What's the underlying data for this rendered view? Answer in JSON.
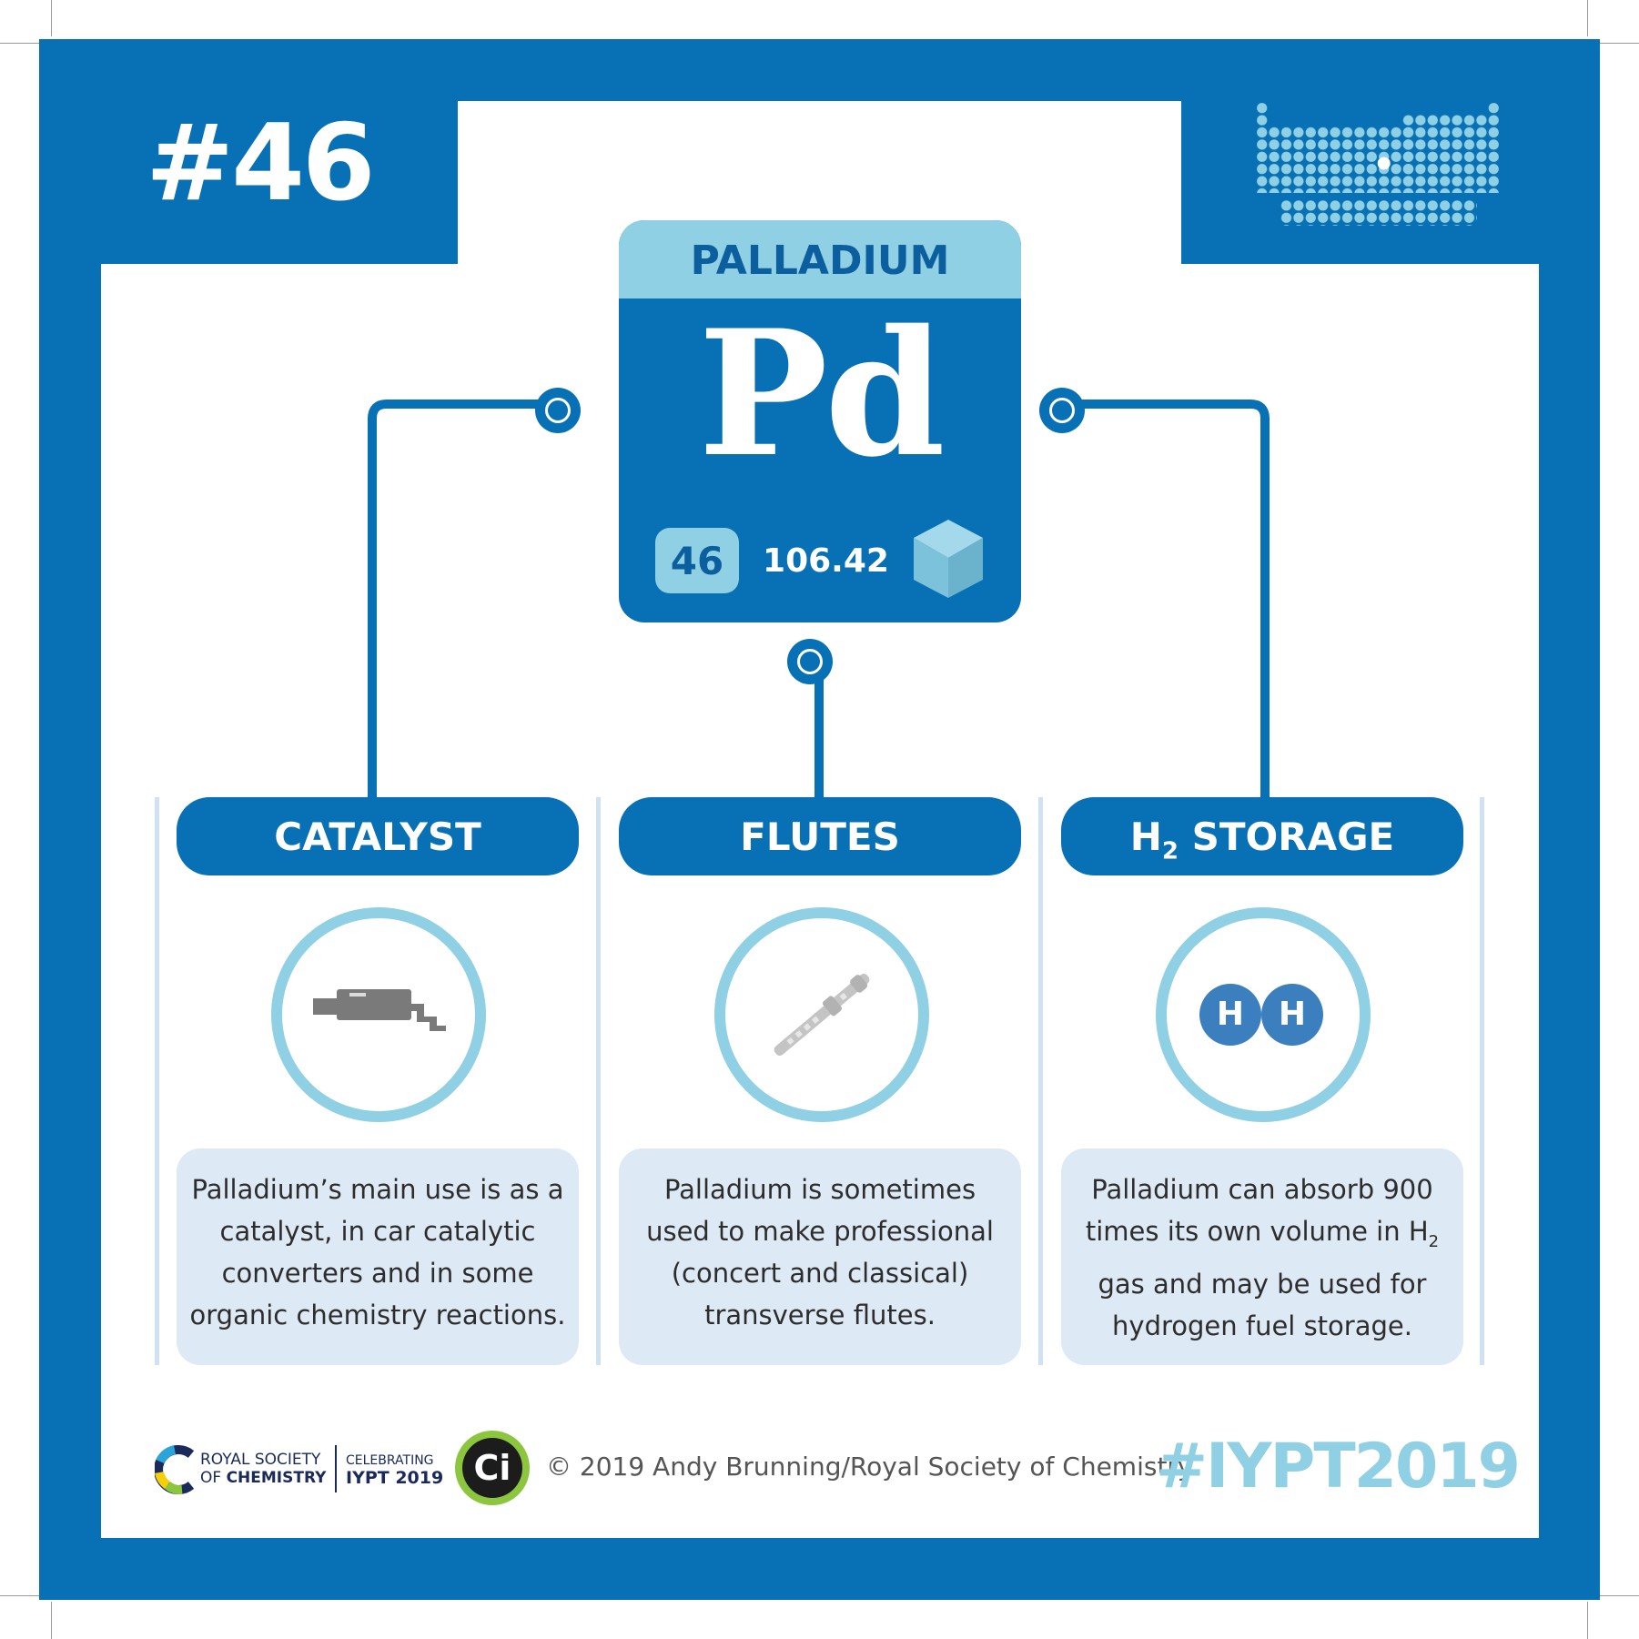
{
  "badge": {
    "number_title": "#46"
  },
  "element": {
    "name": "PALLADIUM",
    "symbol": "Pd",
    "atomic_number": "46",
    "atomic_mass": "106.42"
  },
  "uses": [
    {
      "title": "CATALYST",
      "icon": "exhaust-pipe-icon",
      "description": "Palladium’s main use is as a catalyst, in car catalytic converters and in some organic chemistry reactions."
    },
    {
      "title": "FLUTES",
      "icon": "flute-icon",
      "description": "Palladium is sometimes used to make professional (concert and classical) transverse flutes."
    },
    {
      "title_main": "H",
      "title_sub": "2",
      "title_rest": " STORAGE",
      "icon": "hydrogen-molecule-icon",
      "icon_atom_label": "H",
      "description_line1": "Palladium can absorb 900",
      "description_line2_main": "times its own volume in H",
      "description_line2_sub": "2",
      "description_line3": "gas and may be used for",
      "description_line4": "hydrogen fuel storage."
    }
  ],
  "footer": {
    "rsc_line1": "ROYAL SOCIETY",
    "rsc_line2_a": "OF ",
    "rsc_line2_b": "CHEMISTRY",
    "celebrating": "CELEBRATING",
    "iypt": "IYPT 2019",
    "ci_logo": "Ci",
    "copyright": "© 2019 Andy Brunning/Royal Society of Chemistry",
    "hashtag": "#IYPT2019"
  },
  "colors": {
    "primary_blue": "#0870b5",
    "light_blue": "#8fd0e4",
    "card_bg": "#dde9f4",
    "icon_grey": "#7a7a7a"
  }
}
